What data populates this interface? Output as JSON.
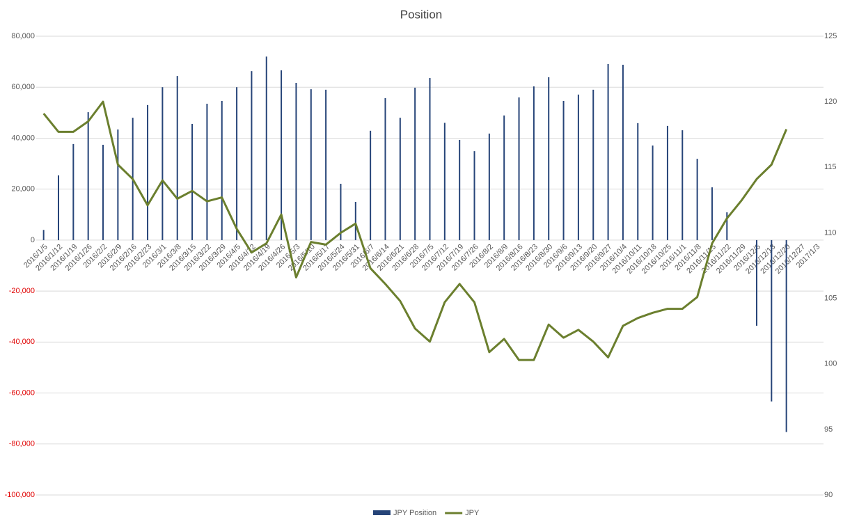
{
  "chart_data": {
    "type": "bar_line",
    "title": "Position",
    "categories": [
      "2016/1/5",
      "2016/1/12",
      "2016/1/19",
      "2016/1/26",
      "2016/2/2",
      "2016/2/9",
      "2016/2/16",
      "2016/2/23",
      "2016/3/1",
      "2016/3/8",
      "2016/3/15",
      "2016/3/22",
      "2016/3/29",
      "2016/4/5",
      "2016/4/12",
      "2016/4/19",
      "2016/4/26",
      "2016/5/3",
      "2016/5/10",
      "2016/5/17",
      "2016/5/24",
      "2016/5/31",
      "2016/6/7",
      "2016/6/14",
      "2016/6/21",
      "2016/6/28",
      "2016/7/5",
      "2016/7/12",
      "2016/7/19",
      "2016/7/26",
      "2016/8/2",
      "2016/8/9",
      "2016/8/16",
      "2016/8/23",
      "2016/8/30",
      "2016/9/6",
      "2016/9/13",
      "2016/9/20",
      "2016/9/27",
      "2016/10/4",
      "2016/10/11",
      "2016/10/18",
      "2016/10/25",
      "2016/11/1",
      "2016/11/8",
      "2016/11/15",
      "2016/11/22",
      "2016/11/29",
      "2016/12/6",
      "2016/12/13",
      "2016/12/20",
      "2016/12/27",
      "2017/1/3"
    ],
    "series": [
      {
        "name": "JPY Position",
        "kind": "bar",
        "axis": "y",
        "color": "#264478",
        "values": [
          4000,
          25400,
          37700,
          50200,
          37400,
          43400,
          48000,
          53000,
          60000,
          64400,
          45600,
          53500,
          54600,
          60000,
          66300,
          72000,
          66600,
          61700,
          59200,
          59000,
          22100,
          15000,
          42900,
          55700,
          48000,
          59800,
          63600,
          46000,
          39300,
          34900,
          41800,
          48900,
          56000,
          60300,
          63900,
          54600,
          57100,
          59000,
          69100,
          68800,
          45900,
          37100,
          44800,
          43100,
          31900,
          20700,
          10900,
          null,
          -33600,
          -63300,
          -75300,
          null,
          null
        ]
      },
      {
        "name": "JPY",
        "kind": "line",
        "axis": "y2",
        "color": "#6b7f2e",
        "values": [
          119.1,
          117.7,
          117.7,
          118.5,
          120.0,
          115.2,
          114.1,
          112.1,
          114.0,
          112.6,
          113.2,
          112.4,
          112.7,
          110.3,
          108.5,
          109.2,
          111.4,
          106.6,
          109.3,
          109.1,
          110.0,
          110.7,
          107.3,
          106.1,
          104.8,
          102.7,
          101.7,
          104.7,
          106.1,
          104.7,
          100.9,
          101.9,
          100.3,
          100.3,
          103.0,
          102.0,
          102.6,
          101.7,
          100.5,
          102.9,
          103.5,
          103.9,
          104.2,
          104.2,
          105.1,
          109.2,
          111.1,
          112.5,
          114.1,
          115.2,
          117.9,
          null,
          null
        ]
      }
    ],
    "ylim": [
      -100000,
      80000
    ],
    "yticks": [
      {
        "value": -100000,
        "label": "-100,000"
      },
      {
        "value": -80000,
        "label": "-80,000"
      },
      {
        "value": -60000,
        "label": "-60,000"
      },
      {
        "value": -40000,
        "label": "-40,000"
      },
      {
        "value": -20000,
        "label": "-20,000"
      },
      0,
      {
        "value": 20000,
        "label": "20,000"
      },
      {
        "value": 40000,
        "label": "40,000"
      },
      {
        "value": 60000,
        "label": "60,000"
      },
      {
        "value": 80000,
        "label": "80,000"
      }
    ],
    "negative_tick_color": "#e00000",
    "y2lim": [
      90,
      125
    ],
    "y2ticks": [
      90,
      95,
      100,
      105,
      110,
      115,
      120,
      125
    ],
    "grid": true,
    "legend": "bottom"
  }
}
